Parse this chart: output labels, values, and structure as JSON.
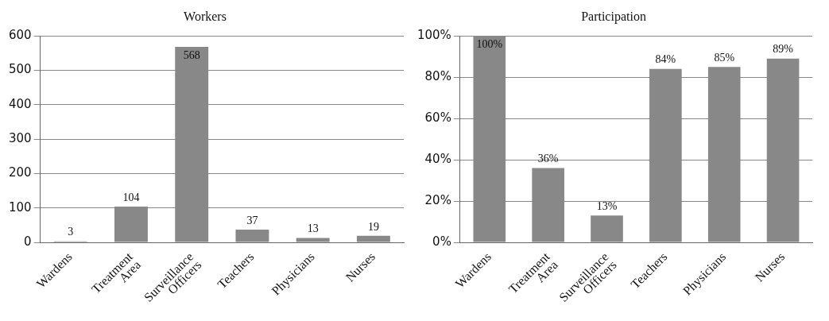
{
  "chart_data": [
    {
      "type": "bar",
      "title": "Workers",
      "categories": [
        "Wardens",
        "Treatment Area",
        "Surveillance Officers",
        "Teachers",
        "Physicians",
        "Nurses"
      ],
      "values": [
        3,
        104,
        568,
        37,
        13,
        19
      ],
      "color": "#888888",
      "ylim": [
        0,
        600
      ],
      "yticks": [
        0,
        100,
        200,
        300,
        400,
        500,
        600
      ],
      "grid": "y",
      "data_labels": true
    },
    {
      "type": "bar",
      "title": "Participation",
      "categories": [
        "Wardens",
        "Treatment Area",
        "Surveillance Officers",
        "Teachers",
        "Physicians",
        "Nurses"
      ],
      "values": [
        100,
        36,
        13,
        84,
        85,
        89
      ],
      "value_labels": [
        "100%",
        "36%",
        "13%",
        "84%",
        "85%",
        "89%"
      ],
      "color": "#888888",
      "ylim": [
        0,
        100
      ],
      "yticks": [
        {
          "value": 0,
          "label": "0%"
        },
        {
          "value": 20,
          "label": "20%"
        },
        {
          "value": 40,
          "label": "40%"
        },
        {
          "value": 60,
          "label": "60%"
        },
        {
          "value": 80,
          "label": "80%"
        },
        {
          "value": 100,
          "label": "100%"
        }
      ],
      "grid": "y"
    }
  ]
}
